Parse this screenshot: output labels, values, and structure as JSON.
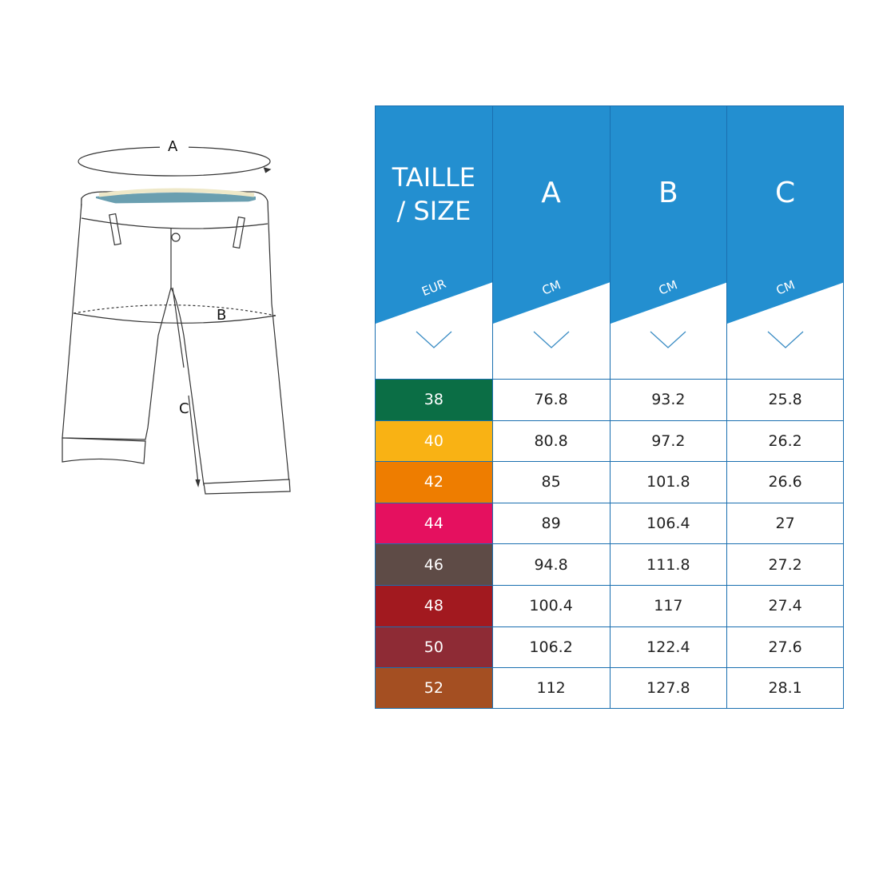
{
  "diagram": {
    "labels": {
      "a": "A",
      "b": "B",
      "c": "C"
    }
  },
  "table": {
    "header_color": "#238fd0",
    "columns": [
      {
        "title": "TAILLE / SIZE",
        "title_lines": [
          "TAILLE",
          "/ SIZE"
        ],
        "unit": "EUR"
      },
      {
        "title": "A",
        "unit": "CM"
      },
      {
        "title": "B",
        "unit": "CM"
      },
      {
        "title": "C",
        "unit": "CM"
      }
    ],
    "rows": [
      {
        "size": "38",
        "color": "#0b6e45",
        "a": "76.8",
        "b": "93.2",
        "c": "25.8"
      },
      {
        "size": "40",
        "color": "#f9b214",
        "a": "80.8",
        "b": "97.2",
        "c": "26.2"
      },
      {
        "size": "42",
        "color": "#ee7d00",
        "a": "85",
        "b": "101.8",
        "c": "26.6"
      },
      {
        "size": "44",
        "color": "#e5105f",
        "a": "89",
        "b": "106.4",
        "c": "27"
      },
      {
        "size": "46",
        "color": "#5e4b46",
        "a": "94.8",
        "b": "111.8",
        "c": "27.2"
      },
      {
        "size": "48",
        "color": "#a2191f",
        "a": "100.4",
        "b": "117",
        "c": "27.4"
      },
      {
        "size": "50",
        "color": "#8e2b35",
        "a": "106.2",
        "b": "122.4",
        "c": "27.6"
      },
      {
        "size": "52",
        "color": "#a44f22",
        "a": "112",
        "b": "127.8",
        "c": "28.1"
      }
    ]
  }
}
